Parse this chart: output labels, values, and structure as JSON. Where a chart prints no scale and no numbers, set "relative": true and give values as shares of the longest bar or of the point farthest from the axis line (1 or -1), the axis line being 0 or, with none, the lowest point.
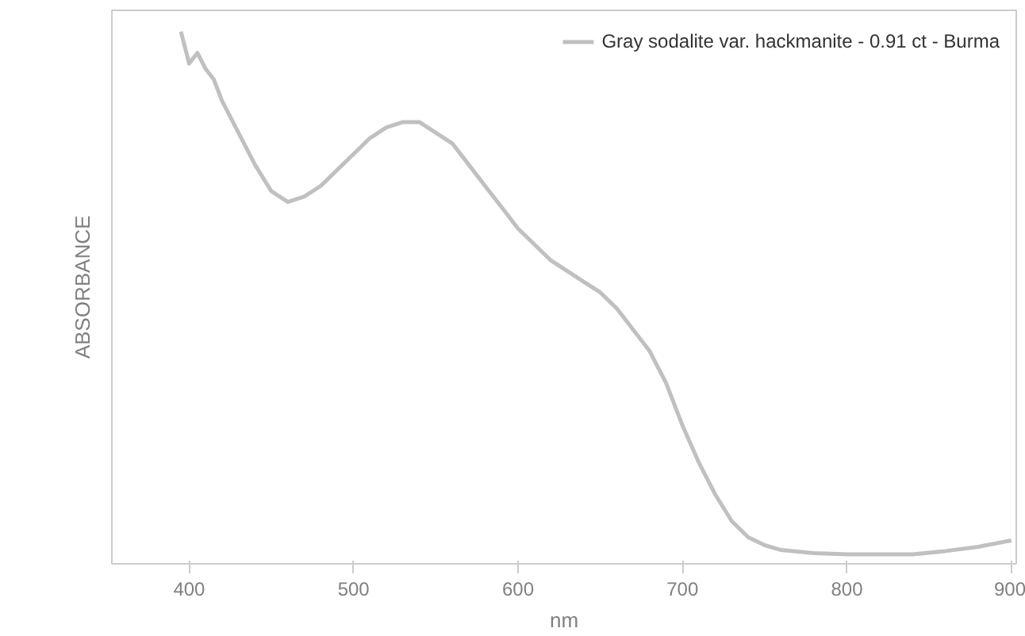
{
  "chart_data": {
    "type": "line",
    "relative": true,
    "xlabel": "nm",
    "ylabel": "ABSORBANCE",
    "xlim": [
      353,
      903
    ],
    "xticks": [
      400,
      500,
      600,
      700,
      800,
      900
    ],
    "grid": false,
    "legend": "top right",
    "line_style": "solid",
    "marker": "none",
    "x": [
      395,
      400,
      405,
      410,
      415,
      420,
      430,
      440,
      450,
      460,
      470,
      480,
      490,
      500,
      510,
      520,
      530,
      540,
      550,
      560,
      570,
      580,
      590,
      600,
      610,
      620,
      630,
      640,
      650,
      660,
      670,
      680,
      690,
      700,
      710,
      720,
      730,
      740,
      750,
      760,
      780,
      800,
      820,
      840,
      860,
      880,
      900
    ],
    "series": [
      {
        "name": "Gray sodalite var. hackmanite - 0.91 ct - Burma",
        "color": "#c0c0c0",
        "values": [
          1.0,
          0.94,
          0.96,
          0.93,
          0.91,
          0.87,
          0.81,
          0.75,
          0.7,
          0.68,
          0.69,
          0.71,
          0.74,
          0.77,
          0.8,
          0.82,
          0.83,
          0.83,
          0.81,
          0.79,
          0.75,
          0.71,
          0.67,
          0.63,
          0.6,
          0.57,
          0.55,
          0.53,
          0.51,
          0.48,
          0.44,
          0.4,
          0.34,
          0.26,
          0.19,
          0.13,
          0.08,
          0.05,
          0.035,
          0.026,
          0.02,
          0.018,
          0.018,
          0.018,
          0.024,
          0.032,
          0.044
        ]
      }
    ]
  }
}
